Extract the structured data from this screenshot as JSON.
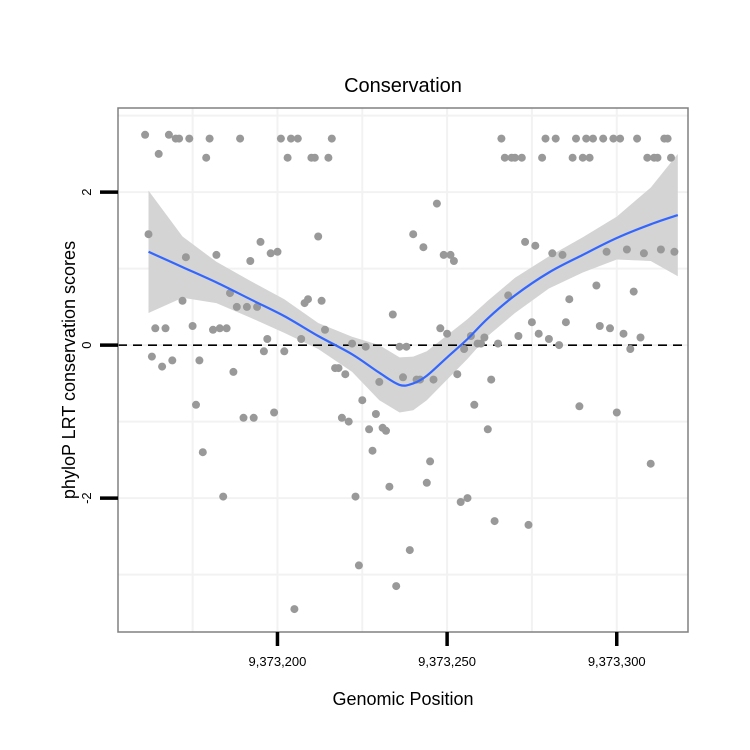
{
  "chart_data": {
    "type": "scatter",
    "title": "Conservation",
    "xlabel": "Genomic Position",
    "ylabel": "phyloP LRT conservation scores",
    "xlim": [
      9373153,
      9373321
    ],
    "ylim": [
      -3.75,
      3.1
    ],
    "x_ticks": [
      9373200,
      9373250,
      9373300
    ],
    "x_tick_labels": [
      "9,373,200",
      "9,373,250",
      "9,373,300"
    ],
    "y_ticks": [
      -2,
      0,
      2
    ],
    "y_tick_labels": [
      "-2",
      "0",
      "2"
    ],
    "grid": true,
    "reference_line": {
      "y": 0,
      "style": "dashed"
    },
    "colors": {
      "points": "#999999",
      "smooth_line": "#3366ff",
      "confidence_band": "#d4d4d4",
      "panel_border": "#808080",
      "grid": "#f2f2f2"
    },
    "points": [
      [
        9373161,
        2.75
      ],
      [
        9373162,
        1.45
      ],
      [
        9373163,
        -0.15
      ],
      [
        9373164,
        0.22
      ],
      [
        9373165,
        2.5
      ],
      [
        9373166,
        -0.28
      ],
      [
        9373167,
        0.22
      ],
      [
        9373168,
        2.75
      ],
      [
        9373169,
        -0.2
      ],
      [
        9373170,
        2.7
      ],
      [
        9373171,
        2.7
      ],
      [
        9373172,
        0.58
      ],
      [
        9373173,
        1.15
      ],
      [
        9373174,
        2.7
      ],
      [
        9373175,
        0.25
      ],
      [
        9373176,
        -0.78
      ],
      [
        9373177,
        -0.2
      ],
      [
        9373178,
        -1.4
      ],
      [
        9373179,
        2.45
      ],
      [
        9373180,
        2.7
      ],
      [
        9373181,
        0.2
      ],
      [
        9373182,
        1.18
      ],
      [
        9373183,
        0.22
      ],
      [
        9373184,
        -1.98
      ],
      [
        9373185,
        0.22
      ],
      [
        9373186,
        0.68
      ],
      [
        9373187,
        -0.35
      ],
      [
        9373188,
        0.5
      ],
      [
        9373189,
        2.7
      ],
      [
        9373190,
        -0.95
      ],
      [
        9373191,
        0.5
      ],
      [
        9373192,
        1.1
      ],
      [
        9373193,
        -0.95
      ],
      [
        9373194,
        0.5
      ],
      [
        9373195,
        1.35
      ],
      [
        9373196,
        -0.08
      ],
      [
        9373197,
        0.08
      ],
      [
        9373198,
        1.2
      ],
      [
        9373199,
        -0.88
      ],
      [
        9373200,
        1.22
      ],
      [
        9373201,
        2.7
      ],
      [
        9373202,
        -0.08
      ],
      [
        9373203,
        2.45
      ],
      [
        9373204,
        2.7
      ],
      [
        9373205,
        -3.45
      ],
      [
        9373206,
        2.7
      ],
      [
        9373207,
        0.08
      ],
      [
        9373208,
        0.55
      ],
      [
        9373209,
        0.6
      ],
      [
        9373210,
        2.45
      ],
      [
        9373211,
        2.45
      ],
      [
        9373212,
        1.42
      ],
      [
        9373213,
        0.58
      ],
      [
        9373214,
        0.2
      ],
      [
        9373215,
        2.45
      ],
      [
        9373216,
        2.7
      ],
      [
        9373217,
        -0.3
      ],
      [
        9373218,
        -0.3
      ],
      [
        9373219,
        -0.95
      ],
      [
        9373220,
        -0.38
      ],
      [
        9373221,
        -1.0
      ],
      [
        9373222,
        0.02
      ],
      [
        9373223,
        -1.98
      ],
      [
        9373224,
        -2.88
      ],
      [
        9373225,
        -0.72
      ],
      [
        9373226,
        -0.02
      ],
      [
        9373227,
        -1.1
      ],
      [
        9373228,
        -1.38
      ],
      [
        9373229,
        -0.9
      ],
      [
        9373230,
        -0.48
      ],
      [
        9373231,
        -1.08
      ],
      [
        9373232,
        -1.12
      ],
      [
        9373233,
        -1.85
      ],
      [
        9373234,
        0.4
      ],
      [
        9373235,
        -3.15
      ],
      [
        9373236,
        -0.02
      ],
      [
        9373237,
        -0.42
      ],
      [
        9373238,
        -0.02
      ],
      [
        9373239,
        -2.68
      ],
      [
        9373240,
        1.45
      ],
      [
        9373241,
        -0.45
      ],
      [
        9373242,
        -0.45
      ],
      [
        9373243,
        1.28
      ],
      [
        9373244,
        -1.8
      ],
      [
        9373245,
        -1.52
      ],
      [
        9373246,
        -0.45
      ],
      [
        9373247,
        1.85
      ],
      [
        9373248,
        0.22
      ],
      [
        9373249,
        1.18
      ],
      [
        9373250,
        0.15
      ],
      [
        9373251,
        1.18
      ],
      [
        9373252,
        1.1
      ],
      [
        9373253,
        -0.38
      ],
      [
        9373254,
        -2.05
      ],
      [
        9373255,
        -0.05
      ],
      [
        9373256,
        -2.0
      ],
      [
        9373257,
        0.12
      ],
      [
        9373258,
        -0.78
      ],
      [
        9373259,
        0.02
      ],
      [
        9373260,
        0.02
      ],
      [
        9373261,
        0.1
      ],
      [
        9373262,
        -1.1
      ],
      [
        9373263,
        -0.45
      ],
      [
        9373264,
        -2.3
      ],
      [
        9373265,
        0.02
      ],
      [
        9373266,
        2.7
      ],
      [
        9373267,
        2.45
      ],
      [
        9373268,
        0.65
      ],
      [
        9373269,
        2.45
      ],
      [
        9373270,
        2.45
      ],
      [
        9373271,
        0.12
      ],
      [
        9373272,
        2.45
      ],
      [
        9373273,
        1.35
      ],
      [
        9373274,
        -2.35
      ],
      [
        9373275,
        0.3
      ],
      [
        9373276,
        1.3
      ],
      [
        9373277,
        0.15
      ],
      [
        9373278,
        2.45
      ],
      [
        9373279,
        2.7
      ],
      [
        9373280,
        0.08
      ],
      [
        9373281,
        1.2
      ],
      [
        9373282,
        2.7
      ],
      [
        9373283,
        0.0
      ],
      [
        9373284,
        1.18
      ],
      [
        9373285,
        0.3
      ],
      [
        9373286,
        0.6
      ],
      [
        9373287,
        2.45
      ],
      [
        9373288,
        2.7
      ],
      [
        9373289,
        -0.8
      ],
      [
        9373290,
        2.45
      ],
      [
        9373291,
        2.7
      ],
      [
        9373292,
        2.45
      ],
      [
        9373293,
        2.7
      ],
      [
        9373294,
        0.78
      ],
      [
        9373295,
        0.25
      ],
      [
        9373296,
        2.7
      ],
      [
        9373297,
        1.22
      ],
      [
        9373298,
        0.22
      ],
      [
        9373299,
        2.7
      ],
      [
        9373300,
        -0.88
      ],
      [
        9373301,
        2.7
      ],
      [
        9373302,
        0.15
      ],
      [
        9373303,
        1.25
      ],
      [
        9373304,
        -0.05
      ],
      [
        9373305,
        0.7
      ],
      [
        9373306,
        2.7
      ],
      [
        9373307,
        0.1
      ],
      [
        9373308,
        1.2
      ],
      [
        9373309,
        2.45
      ],
      [
        9373310,
        -1.55
      ],
      [
        9373311,
        2.45
      ],
      [
        9373312,
        2.45
      ],
      [
        9373313,
        1.25
      ],
      [
        9373314,
        2.7
      ],
      [
        9373315,
        2.7
      ],
      [
        9373316,
        2.45
      ],
      [
        9373317,
        1.22
      ]
    ],
    "smooth": {
      "x": [
        9373162,
        9373172,
        9373182,
        9373192,
        9373202,
        9373212,
        9373222,
        9373230,
        9373236,
        9373240,
        9373244,
        9373250,
        9373256,
        9373262,
        9373270,
        9373280,
        9373290,
        9373300,
        9373310,
        9373318
      ],
      "y": [
        1.22,
        1.02,
        0.82,
        0.6,
        0.38,
        0.12,
        -0.12,
        -0.36,
        -0.52,
        -0.5,
        -0.4,
        -0.16,
        0.08,
        0.35,
        0.65,
        0.95,
        1.18,
        1.4,
        1.58,
        1.7
      ],
      "lower": [
        0.42,
        0.62,
        0.55,
        0.36,
        0.16,
        -0.05,
        -0.35,
        -0.72,
        -0.88,
        -0.85,
        -0.72,
        -0.45,
        -0.18,
        0.12,
        0.42,
        0.74,
        0.95,
        1.12,
        1.1,
        0.9
      ],
      "upper": [
        2.02,
        1.42,
        1.09,
        0.84,
        0.6,
        0.29,
        0.11,
        0.0,
        -0.16,
        -0.15,
        -0.08,
        0.13,
        0.34,
        0.58,
        0.88,
        1.16,
        1.41,
        1.68,
        2.06,
        2.5
      ]
    }
  }
}
